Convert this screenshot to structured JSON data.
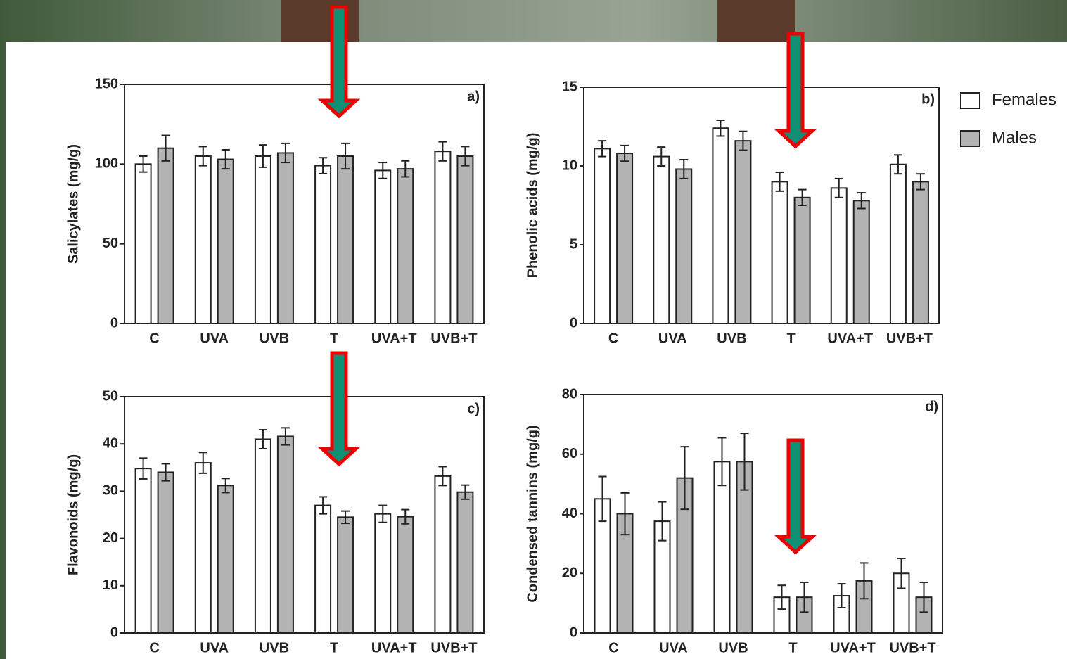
{
  "chart_data": [
    {
      "type": "bar",
      "panel": "a)",
      "y_label": "Salicylates (mg/g)",
      "categories": [
        "C",
        "UVA",
        "UVB",
        "T",
        "UVA+T",
        "UVB+T"
      ],
      "series": [
        {
          "color": "#ffffff",
          "values": [
            100,
            105,
            105,
            99,
            96,
            108
          ],
          "errors": [
            5,
            6,
            7,
            5,
            5,
            6
          ]
        },
        {
          "color": "#b3b3b3",
          "values": [
            110,
            103,
            107,
            105,
            97,
            105
          ],
          "errors": [
            8,
            6,
            6,
            8,
            5,
            6
          ]
        }
      ],
      "ylim": [
        0,
        150
      ],
      "yticks": [
        0,
        50,
        100,
        150
      ]
    },
    {
      "type": "bar",
      "panel": "b)",
      "y_label": "Phenolic acids (mg/g)",
      "categories": [
        "C",
        "UVA",
        "UVB",
        "T",
        "UVA+T",
        "UVB+T"
      ],
      "series": [
        {
          "name": "Females",
          "color": "#ffffff",
          "values": [
            11.1,
            10.6,
            12.4,
            9.0,
            8.6,
            10.1
          ],
          "errors": [
            0.5,
            0.6,
            0.5,
            0.6,
            0.6,
            0.6
          ]
        },
        {
          "name": "Males",
          "color": "#b3b3b3",
          "values": [
            10.8,
            9.8,
            11.6,
            8.0,
            7.8,
            9.0
          ],
          "errors": [
            0.5,
            0.6,
            0.6,
            0.5,
            0.5,
            0.5
          ]
        }
      ],
      "ylim": [
        0,
        15
      ],
      "yticks": [
        0,
        5,
        10,
        15
      ]
    },
    {
      "type": "bar",
      "panel": "c)",
      "y_label": "Flavonoids (mg/g)",
      "categories": [
        "C",
        "UVA",
        "UVB",
        "T",
        "UVA+T",
        "UVB+T"
      ],
      "series": [
        {
          "color": "#ffffff",
          "values": [
            34.8,
            36,
            41,
            27,
            25.2,
            33.2
          ],
          "errors": [
            2.2,
            2.2,
            2,
            1.8,
            1.8,
            2
          ]
        },
        {
          "color": "#b3b3b3",
          "values": [
            34,
            31.2,
            41.6,
            24.5,
            24.6,
            29.8
          ],
          "errors": [
            1.8,
            1.5,
            1.8,
            1.3,
            1.5,
            1.5
          ]
        }
      ],
      "ylim": [
        0,
        50
      ],
      "yticks": [
        0,
        10,
        20,
        30,
        40,
        50
      ]
    },
    {
      "type": "bar",
      "panel": "d)",
      "y_label": "Condensed tannins (mg/g)",
      "categories": [
        "C",
        "UVA",
        "UVB",
        "T",
        "UVA+T",
        "UVB+T"
      ],
      "series": [
        {
          "color": "#ffffff",
          "values": [
            45,
            37.5,
            57.5,
            12,
            12.5,
            20
          ],
          "errors": [
            7.5,
            6.5,
            8,
            4,
            4,
            5
          ]
        },
        {
          "color": "#b3b3b3",
          "values": [
            40,
            52,
            57.5,
            12,
            17.5,
            12
          ],
          "errors": [
            7,
            10.5,
            9.5,
            5,
            6,
            5
          ]
        }
      ],
      "ylim": [
        0,
        80
      ],
      "yticks": [
        0,
        20,
        40,
        60,
        80
      ]
    }
  ]
}
